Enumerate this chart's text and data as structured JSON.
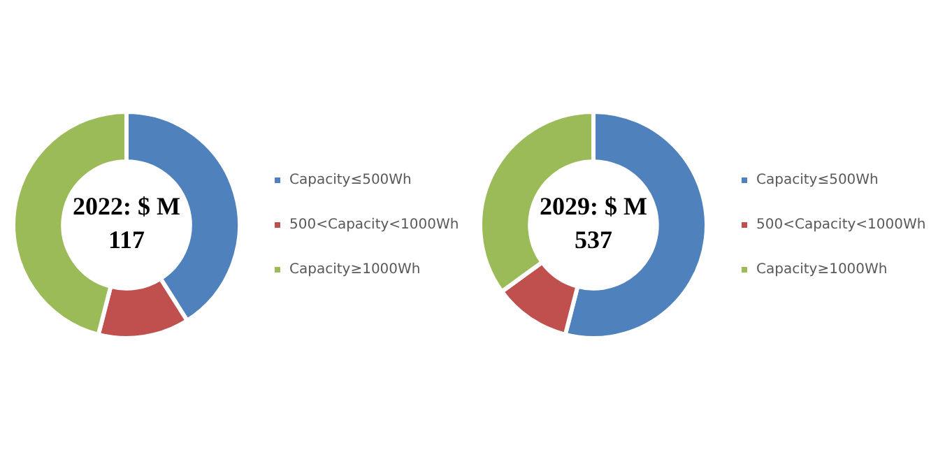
{
  "chart_data": [
    {
      "type": "donut",
      "title": "2022: $ M 117",
      "categories": [
        "Capacity≤500Wh",
        "500<Capacity<1000Wh",
        "Capacity≥1000Wh"
      ],
      "values": [
        41,
        13,
        46
      ],
      "colors": [
        "#4f81bd",
        "#c0504d",
        "#9bbb59"
      ],
      "legend": "right"
    },
    {
      "type": "donut",
      "title": "2029: $ M 537",
      "categories": [
        "Capacity≤500Wh",
        "500<Capacity<1000Wh",
        "Capacity≥1000Wh"
      ],
      "values": [
        54,
        11,
        35
      ],
      "colors": [
        "#4f81bd",
        "#c0504d",
        "#9bbb59"
      ],
      "legend": "right"
    }
  ]
}
